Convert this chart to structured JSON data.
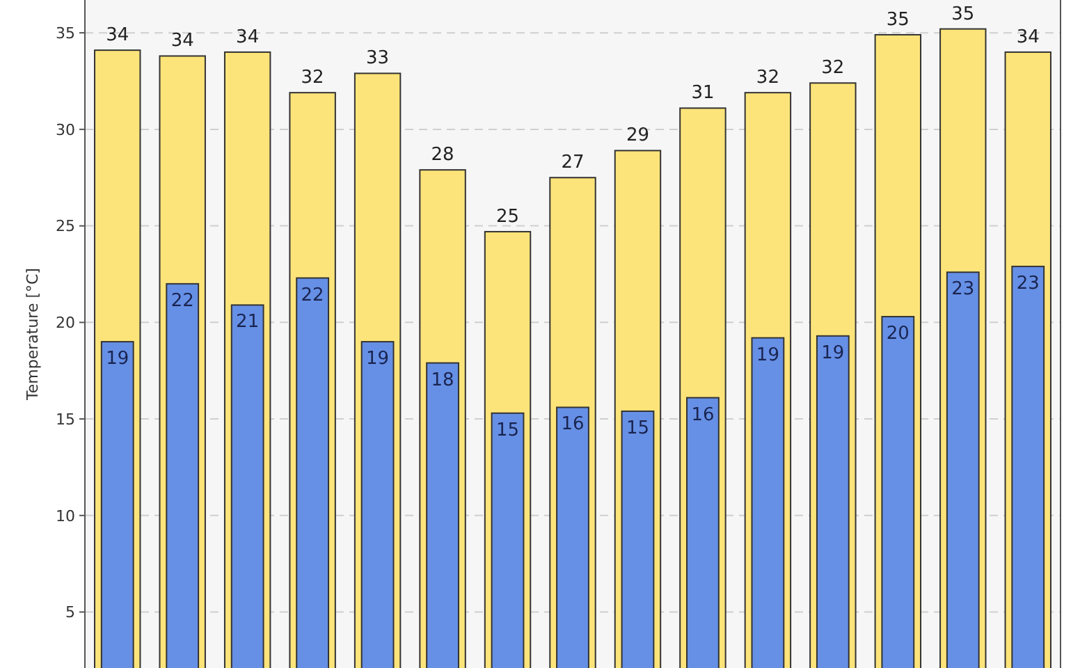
{
  "chart_data": {
    "type": "bar",
    "ylabel": "Temperature [°C]",
    "categories": [
      null,
      null,
      null,
      null,
      null,
      null,
      null,
      null,
      null,
      null,
      null,
      null,
      null,
      null,
      null
    ],
    "series": [
      {
        "color": "#fde47a",
        "values": [
          34.1,
          33.8,
          34.0,
          31.9,
          32.9,
          27.9,
          24.7,
          27.5,
          28.9,
          31.1,
          31.9,
          32.4,
          34.9,
          35.2,
          34.0
        ],
        "value_labels": [
          "34",
          "34",
          "34",
          "32",
          "33",
          "28",
          "25",
          "27",
          "29",
          "31",
          "32",
          "32",
          "35",
          "35",
          "34"
        ]
      },
      {
        "color": "#6690e6",
        "values": [
          19.0,
          22.0,
          20.9,
          22.3,
          19.0,
          17.9,
          15.3,
          15.6,
          15.4,
          16.1,
          19.2,
          19.3,
          20.3,
          22.6,
          22.9
        ],
        "value_labels": [
          "19",
          "22",
          "21",
          "22",
          "19",
          "18",
          "15",
          "16",
          "15",
          "16",
          "19",
          "19",
          "20",
          "23",
          "23"
        ]
      }
    ],
    "ylim": [
      2.1,
      36.7
    ],
    "yticks": [
      5,
      10,
      15,
      20,
      25,
      30,
      35
    ],
    "grid": "y"
  }
}
